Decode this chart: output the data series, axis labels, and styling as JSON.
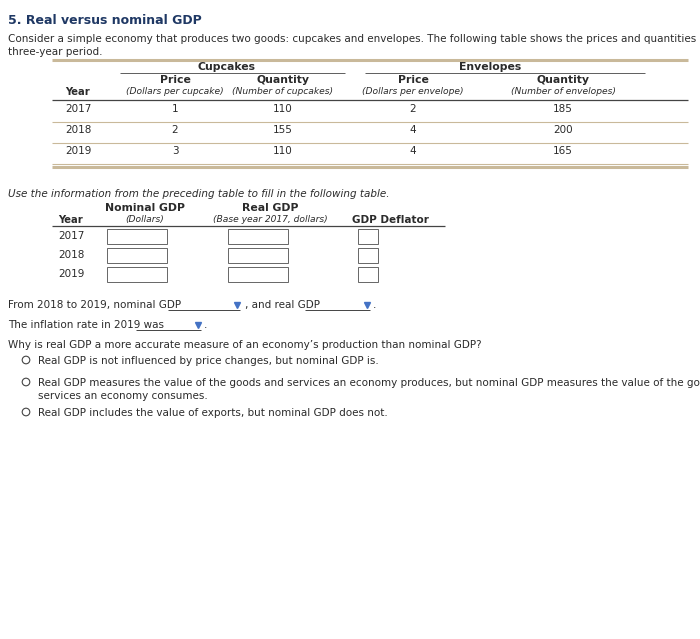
{
  "title": "5. Real versus nominal GDP",
  "intro_line1": "Consider a simple economy that produces two goods: cupcakes and envelopes. The following table shows the prices and quantities of the goods over a",
  "intro_line2": "three-year period.",
  "t1_cupcakes": "Cupcakes",
  "t1_envelopes": "Envelopes",
  "t1_price": "Price",
  "t1_quantity": "Quantity",
  "t1_year": "Year",
  "t1_price_cup_sub": "(Dollars per cupcake)",
  "t1_qty_cup_sub": "(Number of cupcakes)",
  "t1_price_env_sub": "(Dollars per envelope)",
  "t1_qty_env_sub": "(Number of envelopes)",
  "t1_data": [
    [
      "2017",
      "1",
      "110",
      "2",
      "185"
    ],
    [
      "2018",
      "2",
      "155",
      "4",
      "200"
    ],
    [
      "2019",
      "3",
      "110",
      "4",
      "165"
    ]
  ],
  "fill_text": "Use the information from the preceding table to fill in the following table.",
  "t2_nominal": "Nominal GDP",
  "t2_nominal_sub": "(Dollars)",
  "t2_real": "Real GDP",
  "t2_real_sub": "(Base year 2017, dollars)",
  "t2_deflator": "GDP Deflator",
  "t2_year": "Year",
  "t2_years": [
    "2017",
    "2018",
    "2019"
  ],
  "sent1a": "From 2018 to 2019, nominal GDP",
  "sent1b": ", and real GDP",
  "sent1c": ".",
  "sent2a": "The inflation rate in 2019 was",
  "sent2b": ".",
  "question": "Why is real GDP a more accurate measure of an economy’s production than nominal GDP?",
  "opt1": "Real GDP is not influenced by price changes, but nominal GDP is.",
  "opt2a": "Real GDP measures the value of the goods and services an economy produces, but nominal GDP measures the value of the goods and",
  "opt2b": "services an economy consumes.",
  "opt3": "Real GDP includes the value of exports, but nominal GDP does not.",
  "bg": "#ffffff",
  "title_color": "#1f3864",
  "text_color": "#2b2b2b",
  "line_tan": "#c9b99a",
  "line_dark": "#444444",
  "arrow_color": "#4472c4"
}
